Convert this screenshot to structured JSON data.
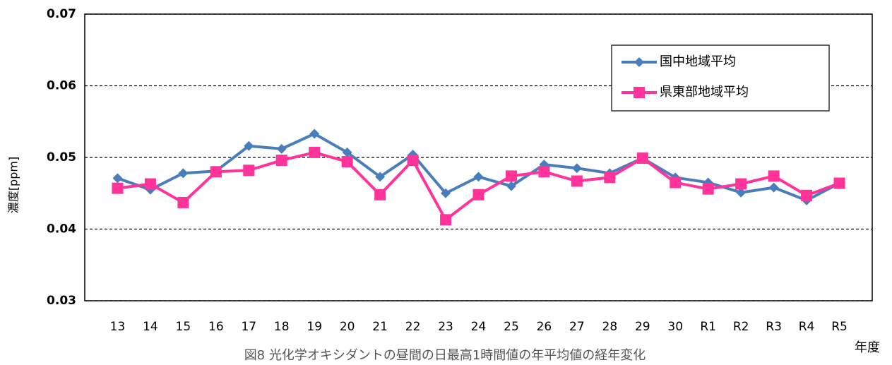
{
  "chart_data": {
    "type": "line",
    "caption": "図8  光化学オキシダントの昼間の日最高1時間値の年平均値の経年変化",
    "y_label": "濃度[ppm]",
    "x_label": "年度",
    "categories": [
      "13",
      "14",
      "15",
      "16",
      "17",
      "18",
      "19",
      "20",
      "21",
      "22",
      "23",
      "24",
      "25",
      "26",
      "27",
      "28",
      "29",
      "30",
      "R1",
      "R2",
      "R3",
      "R4",
      "R5"
    ],
    "series": [
      {
        "name": "国中地域平均",
        "color": "#4a7ebb",
        "marker": "diamond",
        "values": [
          0.0471,
          0.0455,
          0.0478,
          0.0481,
          0.0516,
          0.0512,
          0.0533,
          0.0507,
          0.0473,
          0.0504,
          0.045,
          0.0473,
          0.046,
          0.049,
          0.0485,
          0.0478,
          0.0499,
          0.0472,
          0.0465,
          0.0451,
          0.0458,
          0.044,
          0.0464
        ]
      },
      {
        "name": "県東部地域平均",
        "color": "#ff3399",
        "marker": "square",
        "values": [
          0.0457,
          0.0463,
          0.0437,
          0.048,
          0.0482,
          0.0496,
          0.0507,
          0.0494,
          0.0448,
          0.0496,
          0.0413,
          0.0448,
          0.0474,
          0.048,
          0.0467,
          0.0472,
          0.0499,
          0.0465,
          0.0456,
          0.0463,
          0.0474,
          0.0447,
          0.0464
        ]
      }
    ],
    "ylim": [
      0.03,
      0.07
    ],
    "yticks": [
      0.03,
      0.04,
      0.05,
      0.06,
      0.07
    ],
    "grid": true
  }
}
